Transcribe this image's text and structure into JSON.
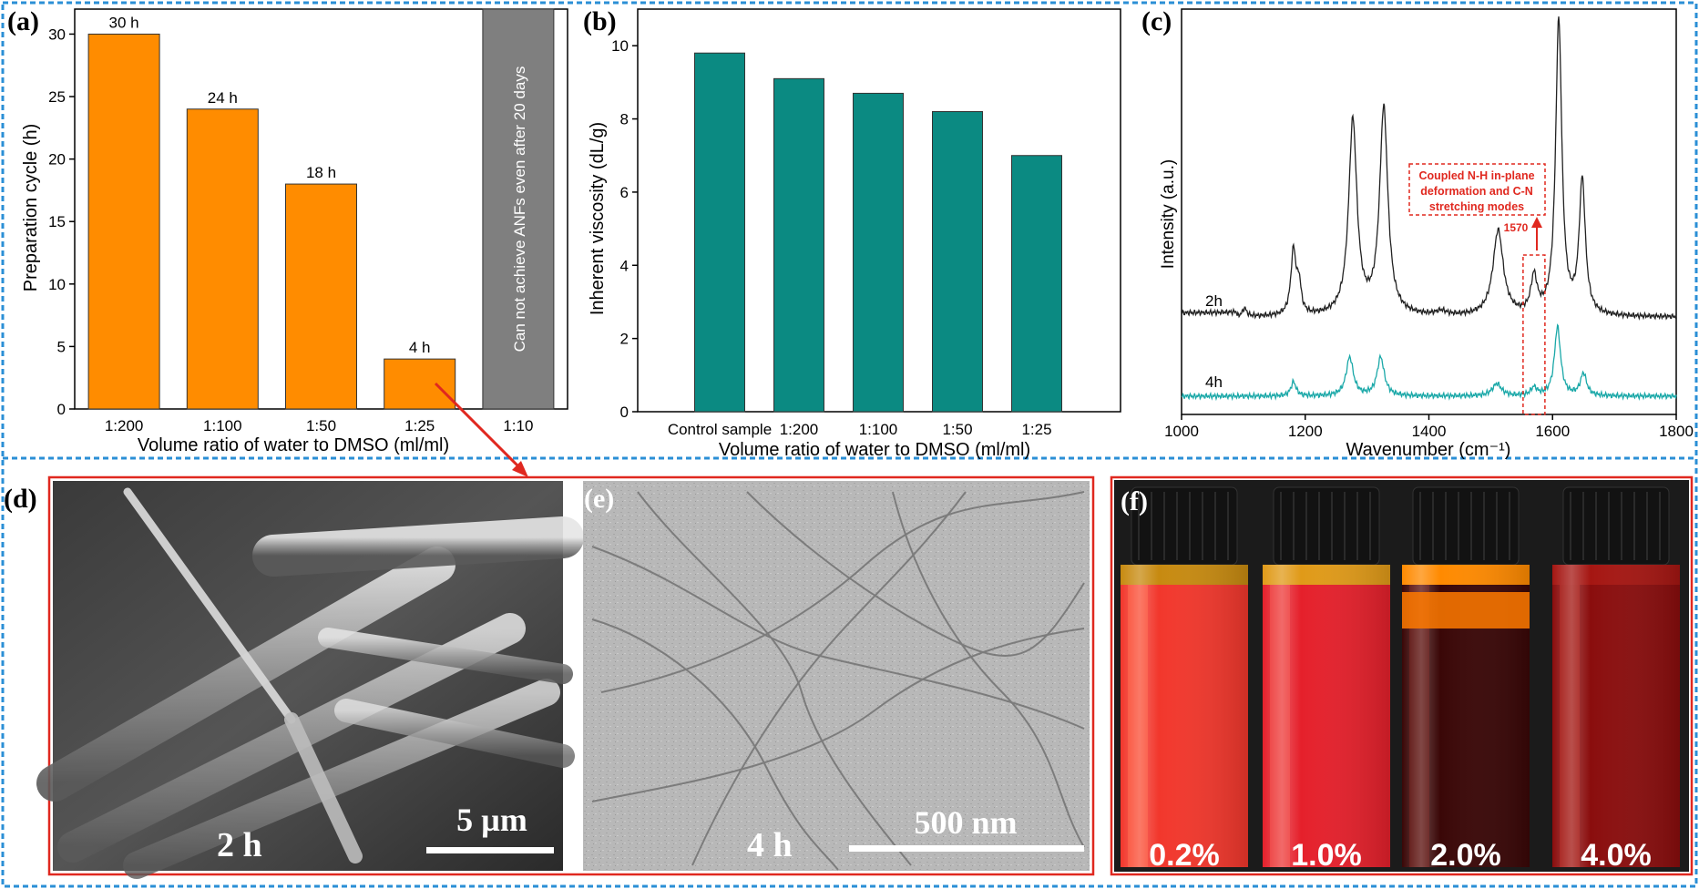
{
  "panels": {
    "a": {
      "label": "(a)"
    },
    "b": {
      "label": "(b)"
    },
    "c": {
      "label": "(c)"
    },
    "d": {
      "label": "(d)",
      "caption": "2 h",
      "scale": "5 µm"
    },
    "e": {
      "label": "(e)",
      "caption": "4 h",
      "scale": "500 nm"
    },
    "f": {
      "label": "(f)",
      "vials": [
        "0.2%",
        "1.0%",
        "2.0%",
        "4.0%"
      ]
    }
  },
  "colors": {
    "border_blue": "#2b8fd6",
    "border_red": "#e0281f",
    "bar_orange": "#ff8c00",
    "bar_gray": "#7f7f7f",
    "bar_teal": "#0b8a82",
    "line_black": "#222222",
    "line_teal": "#1aa8a8"
  },
  "chart_data": [
    {
      "type": "bar",
      "panel": "a",
      "categories": [
        "1:200",
        "1:100",
        "1:50",
        "1:25",
        "1:10"
      ],
      "values": [
        30,
        24,
        18,
        4,
        null
      ],
      "bar_labels": [
        "30 h",
        "24 h",
        "18 h",
        "4 h",
        ""
      ],
      "annotation": "Can not achieve ANFs even after 20 days",
      "xlabel": "Volume ratio of water to DMSO (ml/ml)",
      "ylabel": "Preparation cycle (h)",
      "ylim": [
        0,
        32
      ],
      "yticks": [
        0,
        5,
        10,
        15,
        20,
        25,
        30
      ]
    },
    {
      "type": "bar",
      "panel": "b",
      "categories": [
        "Control sample",
        "1:200",
        "1:100",
        "1:50",
        "1:25"
      ],
      "values": [
        9.8,
        9.1,
        8.7,
        8.2,
        7.0
      ],
      "xlabel": "Volume ratio of water to DMSO (ml/ml)",
      "ylabel": "Inherent viscosity (dL/g)",
      "ylim": [
        0,
        11
      ],
      "yticks": [
        0,
        2,
        4,
        6,
        8,
        10
      ]
    },
    {
      "type": "line",
      "panel": "c",
      "xlabel": "Wavenumber (cm⁻¹)",
      "ylabel": "Intensity (a.u.)",
      "xlim": [
        1000,
        1800
      ],
      "xticks": [
        1000,
        1200,
        1400,
        1600,
        1800
      ],
      "ylim": [
        0,
        10
      ],
      "series": [
        {
          "name": "2h",
          "baseline": 2.4,
          "peaks": [
            [
              1181,
              1.6,
              5
            ],
            [
              1190,
              0.7,
              4
            ],
            [
              1277,
              4.8,
              8
            ],
            [
              1327,
              5.1,
              8
            ],
            [
              1512,
              2.1,
              10
            ],
            [
              1570,
              0.9,
              6
            ],
            [
              1610,
              7.3,
              6
            ],
            [
              1648,
              3.3,
              6
            ],
            [
              1102,
              0.2,
              4
            ],
            [
              1420,
              0.1,
              10
            ]
          ]
        },
        {
          "name": "4h",
          "baseline": 0.45,
          "peaks": [
            [
              1181,
              0.35,
              5
            ],
            [
              1272,
              0.95,
              7
            ],
            [
              1322,
              0.95,
              7
            ],
            [
              1510,
              0.3,
              9
            ],
            [
              1570,
              0.2,
              6
            ],
            [
              1608,
              1.7,
              6
            ],
            [
              1650,
              0.55,
              6
            ]
          ]
        }
      ],
      "annotation": {
        "text": [
          "Coupled N-H in-plane",
          "deformation and C-N",
          "stretching modes"
        ],
        "peak_label": "1570"
      }
    }
  ]
}
